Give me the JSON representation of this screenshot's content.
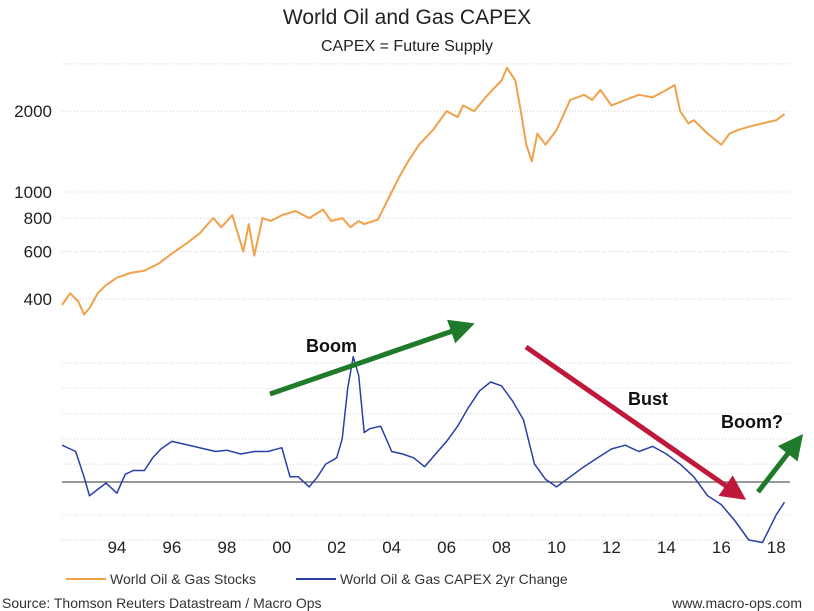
{
  "chart_data": {
    "type": "line",
    "title": "World Oil and Gas CAPEX",
    "subtitle": "CAPEX = Future Supply",
    "x_range": [
      1992.0,
      2018.5
    ],
    "x_ticks": [
      {
        "value": 1994,
        "label": "94"
      },
      {
        "value": 1996,
        "label": "96"
      },
      {
        "value": 1998,
        "label": "98"
      },
      {
        "value": 2000,
        "label": "00"
      },
      {
        "value": 2002,
        "label": "02"
      },
      {
        "value": 2004,
        "label": "04"
      },
      {
        "value": 2006,
        "label": "06"
      },
      {
        "value": 2008,
        "label": "08"
      },
      {
        "value": 2010,
        "label": "10"
      },
      {
        "value": 2012,
        "label": "12"
      },
      {
        "value": 2014,
        "label": "14"
      },
      {
        "value": 2016,
        "label": "16"
      },
      {
        "value": 2018,
        "label": "18"
      }
    ],
    "y_scale_top": "log",
    "y_range_top": [
      320,
      3100
    ],
    "y_ticks_top": [
      {
        "value": 400,
        "label": "400"
      },
      {
        "value": 600,
        "label": "600"
      },
      {
        "value": 800,
        "label": "800"
      },
      {
        "value": 1000,
        "label": "1000"
      },
      {
        "value": 2000,
        "label": "2000"
      }
    ],
    "y_range_bottom": [
      -0.4,
      1.0
    ],
    "series": [
      {
        "name": "World Oil & Gas Stocks",
        "panel": "top",
        "color": "#f0a14a",
        "x": [
          1992.0,
          1992.3,
          1992.6,
          1992.8,
          1993.0,
          1993.3,
          1993.6,
          1994.0,
          1994.5,
          1995.0,
          1995.5,
          1996.0,
          1996.5,
          1997.0,
          1997.5,
          1997.8,
          1998.2,
          1998.6,
          1998.8,
          1999.0,
          1999.3,
          1999.6,
          2000.0,
          2000.5,
          2001.0,
          2001.5,
          2001.8,
          2002.2,
          2002.5,
          2002.8,
          2003.0,
          2003.5,
          2004.0,
          2004.3,
          2004.6,
          2005.0,
          2005.5,
          2006.0,
          2006.4,
          2006.6,
          2007.0,
          2007.5,
          2008.0,
          2008.2,
          2008.5,
          2008.7,
          2008.9,
          2009.1,
          2009.3,
          2009.6,
          2010.0,
          2010.5,
          2011.0,
          2011.3,
          2011.6,
          2012.0,
          2012.5,
          2013.0,
          2013.5,
          2014.0,
          2014.3,
          2014.5,
          2014.8,
          2015.0,
          2015.5,
          2016.0,
          2016.3,
          2016.6,
          2017.0,
          2017.5,
          2018.0,
          2018.3
        ],
        "values": [
          380,
          420,
          390,
          350,
          370,
          420,
          450,
          480,
          500,
          510,
          540,
          590,
          640,
          700,
          800,
          740,
          820,
          600,
          760,
          580,
          800,
          780,
          820,
          850,
          800,
          860,
          780,
          800,
          740,
          780,
          760,
          790,
          1000,
          1150,
          1300,
          1500,
          1700,
          2000,
          1900,
          2100,
          2000,
          2300,
          2600,
          2900,
          2600,
          2000,
          1500,
          1300,
          1650,
          1500,
          1700,
          2200,
          2300,
          2200,
          2400,
          2100,
          2200,
          2300,
          2250,
          2400,
          2500,
          2000,
          1800,
          1850,
          1650,
          1500,
          1650,
          1700,
          1750,
          1800,
          1850,
          1950
        ]
      },
      {
        "name": "World Oil & Gas CAPEX 2yr Change",
        "panel": "bottom",
        "color": "#2a3fa6",
        "x": [
          1992.0,
          1992.5,
          1992.8,
          1993.0,
          1993.3,
          1993.6,
          1994.0,
          1994.3,
          1994.6,
          1995.0,
          1995.3,
          1995.6,
          1996.0,
          1996.4,
          1996.8,
          1997.2,
          1997.6,
          1998.0,
          1998.5,
          1999.0,
          1999.5,
          2000.0,
          2000.3,
          2000.6,
          2001.0,
          2001.3,
          2001.6,
          2002.0,
          2002.2,
          2002.4,
          2002.6,
          2002.8,
          2003.0,
          2003.2,
          2003.6,
          2004.0,
          2004.4,
          2004.8,
          2005.2,
          2005.6,
          2006.0,
          2006.4,
          2006.8,
          2007.2,
          2007.6,
          2008.0,
          2008.4,
          2008.8,
          2009.2,
          2009.6,
          2010.0,
          2010.5,
          2011.0,
          2011.5,
          2012.0,
          2012.5,
          2013.0,
          2013.5,
          2014.0,
          2014.5,
          2015.0,
          2015.5,
          2016.0,
          2016.5,
          2017.0,
          2017.5,
          2018.0,
          2018.3
        ],
        "values": [
          0.35,
          0.3,
          0.1,
          -0.05,
          0.0,
          0.05,
          -0.03,
          0.12,
          0.15,
          0.15,
          0.25,
          0.32,
          0.38,
          0.36,
          0.34,
          0.32,
          0.3,
          0.31,
          0.28,
          0.3,
          0.3,
          0.33,
          0.1,
          0.1,
          0.02,
          0.1,
          0.2,
          0.25,
          0.4,
          0.8,
          1.05,
          0.9,
          0.45,
          0.48,
          0.5,
          0.3,
          0.28,
          0.25,
          0.18,
          0.28,
          0.38,
          0.5,
          0.65,
          0.78,
          0.85,
          0.82,
          0.7,
          0.55,
          0.2,
          0.08,
          0.02,
          0.1,
          0.18,
          0.25,
          0.32,
          0.35,
          0.3,
          0.34,
          0.28,
          0.2,
          0.1,
          -0.05,
          -0.12,
          -0.25,
          -0.4,
          -0.42,
          -0.2,
          -0.1
        ]
      }
    ],
    "legend_position": "bottom-left",
    "annotations": [
      {
        "text": "Boom",
        "color": "#1f7a2a",
        "direction": "up"
      },
      {
        "text": "Bust",
        "color": "#c0183a",
        "direction": "down"
      },
      {
        "text": "Boom?",
        "color": "#1f7a2a",
        "direction": "up"
      }
    ]
  },
  "footer": {
    "source": "Source: Thomson Reuters Datastream / Macro Ops",
    "website": "www.macro-ops.com"
  }
}
